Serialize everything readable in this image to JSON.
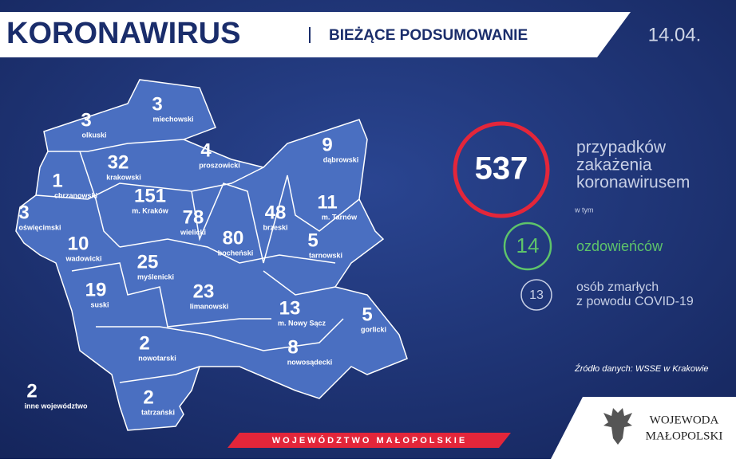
{
  "header": {
    "title": "KORONAWIRUS",
    "subtitle": "BIEŻĄCE PODSUMOWANIE",
    "date": "14.04."
  },
  "districts": [
    {
      "count": 3,
      "name": "olkuski"
    },
    {
      "count": 3,
      "name": "miechowski"
    },
    {
      "count": 4,
      "name": "proszowicki"
    },
    {
      "count": 9,
      "name": "dąbrowski"
    },
    {
      "count": 32,
      "name": "krakowski"
    },
    {
      "count": 1,
      "name": "chrzanowski"
    },
    {
      "count": 11,
      "name": "m. Tarnów"
    },
    {
      "count": 151,
      "name": "m. Kraków"
    },
    {
      "count": 78,
      "name": "wielicki"
    },
    {
      "count": 48,
      "name": "brzeski"
    },
    {
      "count": 3,
      "name": "oświęcimski"
    },
    {
      "count": 10,
      "name": "wadowicki"
    },
    {
      "count": 80,
      "name": "bocheński"
    },
    {
      "count": 5,
      "name": "tarnowski"
    },
    {
      "count": 25,
      "name": "myślenicki"
    },
    {
      "count": 19,
      "name": "suski"
    },
    {
      "count": 23,
      "name": "limanowski"
    },
    {
      "count": 13,
      "name": "m. Nowy Sącz"
    },
    {
      "count": 5,
      "name": "gorlicki"
    },
    {
      "count": 2,
      "name": "nowotarski"
    },
    {
      "count": 8,
      "name": "nowosądecki"
    },
    {
      "count": 2,
      "name": "inne województwo"
    },
    {
      "count": 2,
      "name": "tatrzański"
    }
  ],
  "stats": {
    "total": {
      "value": 537,
      "lines": [
        "przypadków",
        "zakażenia",
        "koronawirusem"
      ]
    },
    "including": "w tym",
    "recovered": {
      "value": 14,
      "label": "ozdowieńców"
    },
    "deaths": {
      "value": 13,
      "lines": [
        "osób zmarłych",
        "z powodu COVID-19"
      ]
    }
  },
  "source": "Źródło danych: WSSE w Krakowie",
  "footer": {
    "banner": "WOJEWÓDZTWO MAŁOPOLSKIE",
    "logo": [
      "WOJEWODA",
      "MAŁOPOLSKI"
    ]
  }
}
